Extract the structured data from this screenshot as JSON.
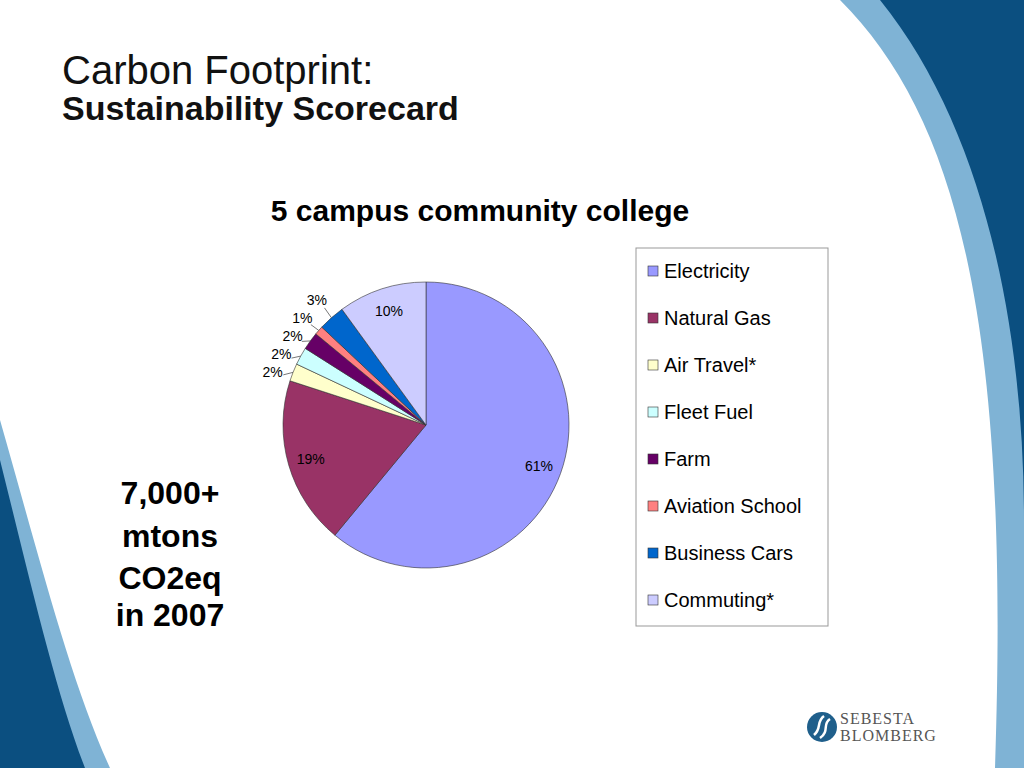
{
  "slide": {
    "title": "Carbon Footprint:",
    "subtitle": "Sustainability Scorecard",
    "callout": [
      "7,000+",
      "mtons",
      "CO2eq",
      "in 2007"
    ],
    "logo": [
      "SEBESTA",
      "BLOMBERG"
    ]
  },
  "chart_data": {
    "type": "pie",
    "title": "5 campus community college",
    "categories": [
      "Electricity",
      "Natural Gas",
      "Air Travel*",
      "Fleet Fuel",
      "Farm",
      "Aviation School",
      "Business Cars",
      "Commuting*"
    ],
    "values": [
      61,
      19,
      2,
      2,
      2,
      1,
      3,
      10
    ],
    "value_labels": [
      "61%",
      "19%",
      "2%",
      "2%",
      "2%",
      "1%",
      "3%",
      "10%"
    ],
    "colors": [
      "#9999ff",
      "#993366",
      "#ffffcc",
      "#ccffff",
      "#660066",
      "#ff8080",
      "#0066cc",
      "#ccccff"
    ],
    "data_labels": true,
    "legend": "right"
  }
}
